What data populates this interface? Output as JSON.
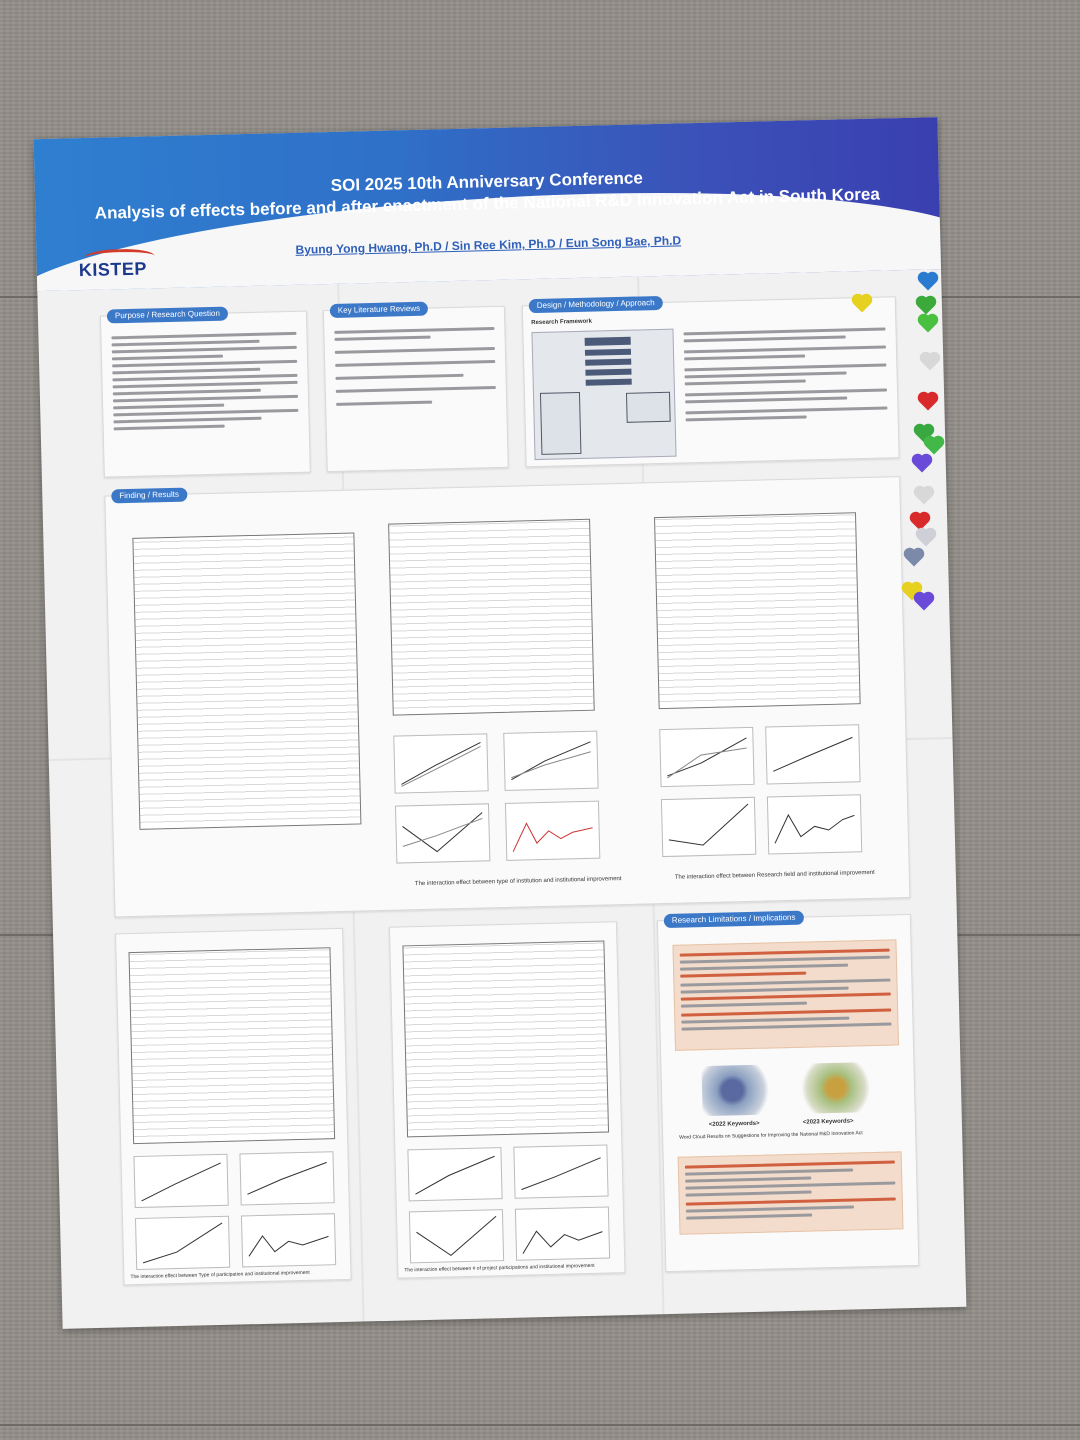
{
  "header": {
    "title_line1": "SOI 2025 10th Anniversary Conference",
    "title_line2": "Analysis of effects before and after enactment of the National R&D Innovation Act in South Korea",
    "authors": "Byung Yong Hwang, Ph.D / Sin Ree Kim, Ph.D / Eun Song Bae, Ph.D",
    "logo": "KISTEP"
  },
  "sections": {
    "purpose": "Purpose / Research Question",
    "literature": "Key Literature Reviews",
    "design": "Design / Methodology / Approach",
    "findings": "Finding / Results",
    "limitations": "Research Limitations / Implications"
  },
  "captions": {
    "research_framework": "Research Framework",
    "fig1_caption": "The interaction effect between type of institution and institutional improvement",
    "fig2_caption": "The interaction effect between Research field and institutional improvement",
    "fig3_caption": "The interaction effect between Type of participation and institutional improvement",
    "fig4_caption": "The interaction effect between # of project participations and institutional improvement",
    "wordcloud_caption": "Word Cloud Results on Suggestions for Improving the National R&D Innovation Act",
    "kw2022": "<2022 Keywords>",
    "kw2023": "<2023 Keywords>"
  },
  "colors": {
    "header_blue": "#2f7fd0",
    "header_indigo": "#3a3fb0",
    "badge_blue": "#3c78c8",
    "logo_navy": "#1c3a8c",
    "logo_red": "#d33a2a"
  }
}
